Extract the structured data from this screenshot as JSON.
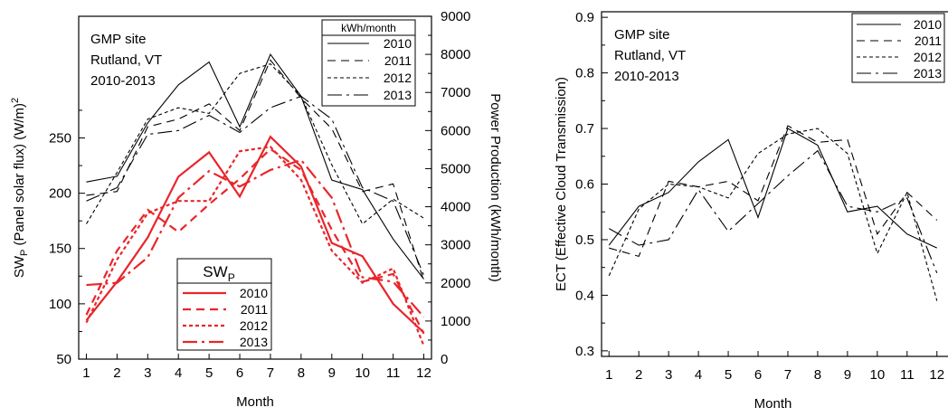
{
  "chart_data": [
    {
      "type": "line",
      "annotation": [
        "GMP site",
        "Rutland, VT",
        "2010-2013"
      ],
      "xlabel": "Month",
      "ylabel": "SW",
      "ylabel_sub": "P",
      "ylabel_rest": " (Panel solar flux) (W/m)",
      "ylabel_sup": "2",
      "y2label": "Power Production (kWh/month)",
      "x_ticks": [
        "1",
        "2",
        "3",
        "4",
        "5",
        "6",
        "7",
        "8",
        "9",
        "10",
        "11",
        "12"
      ],
      "x": [
        1,
        2,
        3,
        4,
        5,
        6,
        7,
        8,
        9,
        10,
        11,
        12
      ],
      "xlim": [
        0.75,
        12.25
      ],
      "ylim": [
        50,
        360
      ],
      "y_ticks": [
        50,
        100,
        150,
        200,
        250
      ],
      "y2lim": [
        0,
        9000
      ],
      "y2_ticks": [
        0,
        1000,
        2000,
        3000,
        4000,
        5000,
        6000,
        7000,
        8000,
        9000
      ],
      "legend_power": {
        "title": "kWh/month",
        "placement": "top-right",
        "color": "#000000"
      },
      "legend_sw": {
        "title": "SW",
        "title_sub": "P",
        "placement": "bottom-center",
        "color": "#e8262b"
      },
      "series_power": [
        {
          "name": "2010",
          "dash": "solid",
          "values": [
            4650,
            4800,
            6200,
            7200,
            7800,
            6100,
            8000,
            6900,
            4700,
            4450,
            3150,
            2100
          ]
        },
        {
          "name": "2011",
          "dash": "dash",
          "values": [
            4300,
            4400,
            6100,
            6300,
            6700,
            6000,
            7850,
            6850,
            6050,
            4400,
            4600,
            2050
          ]
        },
        {
          "name": "2012",
          "dash": "dot",
          "values": [
            3550,
            4900,
            6300,
            6600,
            6450,
            7500,
            7750,
            6900,
            5100,
            3550,
            4200,
            3700
          ]
        },
        {
          "name": "2013",
          "dash": "longdash",
          "values": [
            4150,
            4500,
            5900,
            6000,
            6400,
            5950,
            6600,
            6900,
            6300,
            4500,
            4150,
            2200
          ]
        }
      ],
      "series_sw": [
        {
          "name": "2010",
          "dash": "solid",
          "values": [
            85,
            120,
            160,
            215,
            237,
            197,
            251,
            224,
            155,
            143,
            100,
            74
          ]
        },
        {
          "name": "2011",
          "dash": "dash",
          "values": [
            90,
            148,
            185,
            165,
            190,
            213,
            240,
            221,
            167,
            120,
            127,
            73
          ]
        },
        {
          "name": "2012",
          "dash": "dot",
          "values": [
            83,
            140,
            182,
            193,
            193,
            238,
            242,
            212,
            148,
            119,
            132,
            62
          ]
        },
        {
          "name": "2013",
          "dash": "longdash",
          "values": [
            117,
            119,
            142,
            196,
            220,
            206,
            221,
            230,
            196,
            124,
            120,
            88
          ]
        }
      ]
    },
    {
      "type": "line",
      "annotation": [
        "GMP site",
        "Rutland, VT",
        "2010-2013"
      ],
      "xlabel": "Month",
      "ylabel": "ECT (Effective Cloud Transmission)",
      "x_ticks": [
        "1",
        "2",
        "3",
        "4",
        "5",
        "6",
        "7",
        "8",
        "9",
        "10",
        "11",
        "12"
      ],
      "x": [
        1,
        2,
        3,
        4,
        5,
        6,
        7,
        8,
        9,
        10,
        11,
        12
      ],
      "xlim": [
        0.75,
        12.25
      ],
      "ylim": [
        0.29,
        0.91
      ],
      "y_ticks": [
        0.3,
        0.4,
        0.5,
        0.6,
        0.7,
        0.8,
        0.9
      ],
      "legend": {
        "placement": "top-right"
      },
      "series": [
        {
          "name": "2010",
          "dash": "solid",
          "values": [
            0.49,
            0.56,
            0.585,
            0.64,
            0.68,
            0.54,
            0.7,
            0.67,
            0.55,
            0.56,
            0.51,
            0.485
          ]
        },
        {
          "name": "2011",
          "dash": "dash",
          "values": [
            0.485,
            0.47,
            0.605,
            0.595,
            0.605,
            0.57,
            0.705,
            0.675,
            0.68,
            0.51,
            0.585,
            0.535
          ]
        },
        {
          "name": "2012",
          "dash": "dot",
          "values": [
            0.435,
            0.555,
            0.6,
            0.595,
            0.575,
            0.655,
            0.69,
            0.7,
            0.655,
            0.475,
            0.585,
            0.39
          ]
        },
        {
          "name": "2013",
          "dash": "longdash",
          "values": [
            0.52,
            0.49,
            0.5,
            0.59,
            0.515,
            0.565,
            0.615,
            0.66,
            0.56,
            0.55,
            0.575,
            0.44
          ]
        }
      ]
    }
  ]
}
